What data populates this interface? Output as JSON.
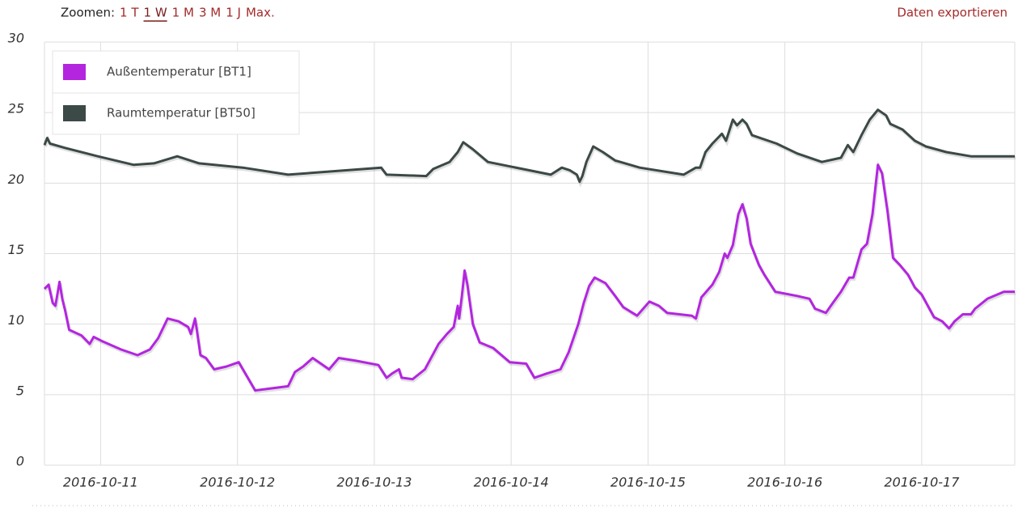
{
  "toolbar": {
    "zoom_label": "Zoomen:",
    "zoom_options": [
      "1 T",
      "1 W",
      "1 M",
      "3 M",
      "1 J",
      "Max."
    ],
    "active_zoom": 1,
    "export_label": "Daten exportieren"
  },
  "chart_data": {
    "type": "line",
    "grid": true,
    "legend": "top-left",
    "xlim": [
      10.59,
      17.68
    ],
    "ylim": [
      0,
      30
    ],
    "yticks": [
      0,
      5,
      10,
      15,
      20,
      25,
      30
    ],
    "xticks": [
      {
        "value": 11,
        "label": "2016-10-11"
      },
      {
        "value": 12,
        "label": "2016-10-12"
      },
      {
        "value": 13,
        "label": "2016-10-13"
      },
      {
        "value": 14,
        "label": "2016-10-14"
      },
      {
        "value": 15,
        "label": "2016-10-15"
      },
      {
        "value": 16,
        "label": "2016-10-16"
      },
      {
        "value": 17,
        "label": "2016-10-17"
      }
    ],
    "series": [
      {
        "name": "Außentemperatur [BT1]",
        "color": "#b425e0",
        "x": [
          10.59,
          10.62,
          10.65,
          10.67,
          10.7,
          10.72,
          10.74,
          10.77,
          10.86,
          10.92,
          10.95,
          11.01,
          11.15,
          11.27,
          11.36,
          11.42,
          11.49,
          11.57,
          11.64,
          11.66,
          11.69,
          11.7,
          11.73,
          11.77,
          11.83,
          11.92,
          12.01,
          12.13,
          12.37,
          12.42,
          12.48,
          12.55,
          12.61,
          12.67,
          12.74,
          12.87,
          13.03,
          13.09,
          13.13,
          13.18,
          13.2,
          13.28,
          13.37,
          13.47,
          13.53,
          13.58,
          13.61,
          13.62,
          13.64,
          13.66,
          13.68,
          13.72,
          13.77,
          13.87,
          13.99,
          14.11,
          14.17,
          14.26,
          14.36,
          14.42,
          14.49,
          14.53,
          14.57,
          14.61,
          14.69,
          14.76,
          14.82,
          14.92,
          15.01,
          15.08,
          15.14,
          15.32,
          15.35,
          15.39,
          15.47,
          15.52,
          15.56,
          15.58,
          15.62,
          15.66,
          15.69,
          15.72,
          15.75,
          15.81,
          15.85,
          15.93,
          16.09,
          16.18,
          16.22,
          16.3,
          16.35,
          16.41,
          16.47,
          16.5,
          16.56,
          16.6,
          16.64,
          16.68,
          16.71,
          16.75,
          16.79,
          16.84,
          16.9,
          16.95,
          17.0,
          17.09,
          17.15,
          17.2,
          17.24,
          17.3,
          17.36,
          17.39,
          17.48,
          17.6,
          17.68
        ],
        "values": [
          12.5,
          12.8,
          11.5,
          11.3,
          13.0,
          11.8,
          11.0,
          9.6,
          9.2,
          8.6,
          9.1,
          8.8,
          8.2,
          7.8,
          8.2,
          9.0,
          10.4,
          10.2,
          9.8,
          9.3,
          10.4,
          9.8,
          7.8,
          7.6,
          6.8,
          7.0,
          7.3,
          5.3,
          5.6,
          6.6,
          7.0,
          7.6,
          7.2,
          6.8,
          7.6,
          7.4,
          7.1,
          6.2,
          6.5,
          6.8,
          6.2,
          6.1,
          6.8,
          8.6,
          9.3,
          9.8,
          11.3,
          10.4,
          12.0,
          13.8,
          12.8,
          10.0,
          8.7,
          8.3,
          7.3,
          7.2,
          6.2,
          6.5,
          6.8,
          8.0,
          10.0,
          11.5,
          12.7,
          13.3,
          12.9,
          12.0,
          11.2,
          10.6,
          11.6,
          11.3,
          10.8,
          10.6,
          10.4,
          11.9,
          12.8,
          13.7,
          15.0,
          14.7,
          15.6,
          17.8,
          18.5,
          17.5,
          15.7,
          14.2,
          13.5,
          12.3,
          12.0,
          11.8,
          11.1,
          10.8,
          11.5,
          12.3,
          13.3,
          13.3,
          15.3,
          15.7,
          17.8,
          21.3,
          20.7,
          18.0,
          14.7,
          14.2,
          13.5,
          12.6,
          12.1,
          10.5,
          10.2,
          9.7,
          10.2,
          10.7,
          10.7,
          11.1,
          11.8,
          12.3,
          12.3
        ]
      },
      {
        "name": "Raumtemperatur [BT50]",
        "color": "#3b4947",
        "x": [
          10.59,
          10.61,
          10.63,
          10.74,
          10.98,
          11.24,
          11.39,
          11.56,
          11.72,
          12.04,
          12.37,
          13.05,
          13.09,
          13.38,
          13.43,
          13.55,
          13.61,
          13.65,
          13.72,
          13.83,
          14.29,
          14.37,
          14.43,
          14.48,
          14.5,
          14.52,
          14.55,
          14.6,
          14.67,
          14.76,
          14.94,
          15.26,
          15.35,
          15.38,
          15.42,
          15.47,
          15.52,
          15.54,
          15.57,
          15.62,
          15.65,
          15.69,
          15.72,
          15.76,
          15.94,
          16.09,
          16.27,
          16.41,
          16.46,
          16.5,
          16.56,
          16.62,
          16.68,
          16.74,
          16.77,
          16.86,
          16.95,
          17.03,
          17.18,
          17.36,
          17.68
        ],
        "values": [
          22.7,
          23.2,
          22.8,
          22.5,
          21.9,
          21.3,
          21.4,
          21.9,
          21.4,
          21.1,
          20.6,
          21.1,
          20.6,
          20.5,
          21.0,
          21.5,
          22.2,
          22.9,
          22.4,
          21.5,
          20.6,
          21.1,
          20.9,
          20.6,
          20.1,
          20.5,
          21.5,
          22.6,
          22.2,
          21.6,
          21.1,
          20.6,
          21.1,
          21.1,
          22.2,
          22.8,
          23.3,
          23.5,
          23.0,
          24.5,
          24.1,
          24.5,
          24.2,
          23.4,
          22.8,
          22.1,
          21.5,
          21.8,
          22.7,
          22.2,
          23.4,
          24.5,
          25.2,
          24.8,
          24.2,
          23.8,
          23.0,
          22.6,
          22.2,
          21.9,
          21.9
        ]
      }
    ]
  }
}
